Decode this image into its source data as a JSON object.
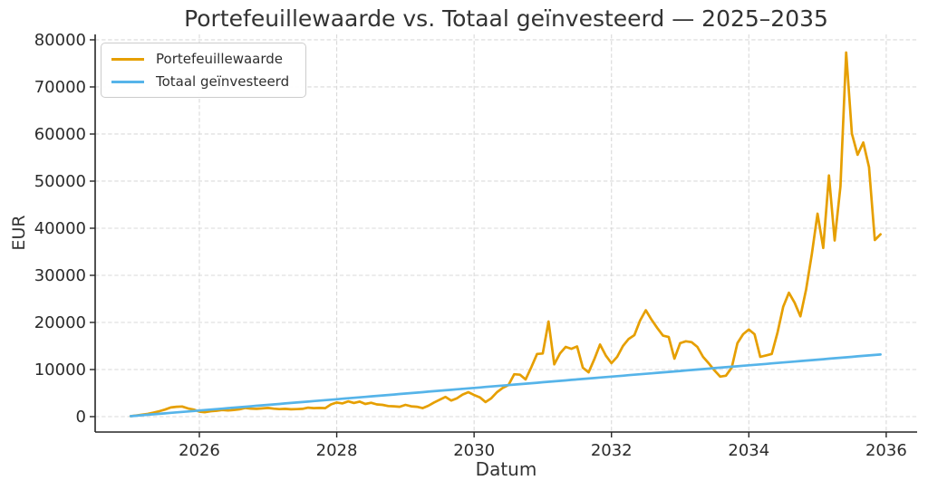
{
  "chart_data": {
    "type": "line",
    "title": "Portefeuillewaarde vs. Totaal geïnvesteerd — 2025–2035",
    "xlabel": "Datum",
    "ylabel": "EUR",
    "x_start_year": 2025,
    "x_step_months": 1,
    "xlim": [
      2024.483,
      2036.45
    ],
    "ylim": [
      -3270,
      81150
    ],
    "x_ticks": [
      2026,
      2028,
      2030,
      2032,
      2034,
      2036
    ],
    "y_ticks": [
      0,
      10000,
      20000,
      30000,
      40000,
      50000,
      60000,
      70000,
      80000
    ],
    "grid": "dashed",
    "legend_position": "upper-left",
    "series": [
      {
        "name": "Portefeuillewaarde",
        "color": "#E69F00",
        "values": [
          100,
          250,
          420,
          600,
          850,
          1150,
          1500,
          1950,
          2100,
          2150,
          1750,
          1500,
          1050,
          950,
          1150,
          1250,
          1400,
          1300,
          1400,
          1550,
          1850,
          1700,
          1650,
          1750,
          1850,
          1700,
          1600,
          1650,
          1550,
          1600,
          1650,
          1900,
          1800,
          1850,
          1800,
          2600,
          3000,
          2800,
          3250,
          2900,
          3200,
          2700,
          2950,
          2600,
          2500,
          2250,
          2200,
          2100,
          2500,
          2200,
          2100,
          1800,
          2300,
          3000,
          3600,
          4200,
          3400,
          3900,
          4700,
          5200,
          4600,
          4100,
          3100,
          3900,
          5200,
          6100,
          6700,
          9000,
          8900,
          7900,
          10500,
          13300,
          13400,
          20200,
          11100,
          13400,
          14800,
          14400,
          14900,
          10400,
          9400,
          12200,
          15300,
          13000,
          11350,
          12700,
          15000,
          16500,
          17300,
          20400,
          22600,
          20600,
          18800,
          17200,
          16900,
          12300,
          15600,
          16000,
          15800,
          14800,
          12700,
          11300,
          9800,
          8500,
          8700,
          10400,
          15600,
          17500,
          18500,
          17500,
          12700,
          13000,
          13300,
          17800,
          23300,
          26300,
          24200,
          21300,
          27000,
          34500,
          43100,
          35800,
          51200,
          37400,
          48900,
          77300,
          60100,
          55600,
          58200,
          53000,
          37500,
          38700
        ]
      },
      {
        "name": "Totaal geïnvesteerd",
        "color": "#56B4E9",
        "values": [
          100,
          200,
          300,
          400,
          500,
          600,
          700,
          800,
          900,
          1000,
          1100,
          1200,
          1300,
          1400,
          1500,
          1600,
          1700,
          1800,
          1900,
          2000,
          2100,
          2200,
          2300,
          2400,
          2500,
          2600,
          2700,
          2800,
          2900,
          3000,
          3100,
          3200,
          3300,
          3400,
          3500,
          3600,
          3700,
          3800,
          3900,
          4000,
          4100,
          4200,
          4300,
          4400,
          4500,
          4600,
          4700,
          4800,
          4900,
          5000,
          5100,
          5200,
          5300,
          5400,
          5500,
          5600,
          5700,
          5800,
          5900,
          6000,
          6100,
          6200,
          6300,
          6400,
          6500,
          6600,
          6700,
          6800,
          6900,
          7000,
          7100,
          7200,
          7300,
          7400,
          7500,
          7600,
          7700,
          7800,
          7900,
          8000,
          8100,
          8200,
          8300,
          8400,
          8500,
          8600,
          8700,
          8800,
          8900,
          9000,
          9100,
          9200,
          9300,
          9400,
          9500,
          9600,
          9700,
          9800,
          9900,
          10000,
          10100,
          10200,
          10300,
          10400,
          10500,
          10600,
          10700,
          10800,
          10900,
          11000,
          11100,
          11200,
          11300,
          11400,
          11500,
          11600,
          11700,
          11800,
          11900,
          12000,
          12100,
          12200,
          12300,
          12400,
          12500,
          12600,
          12700,
          12800,
          12900,
          13000,
          13100,
          13200
        ]
      }
    ]
  }
}
